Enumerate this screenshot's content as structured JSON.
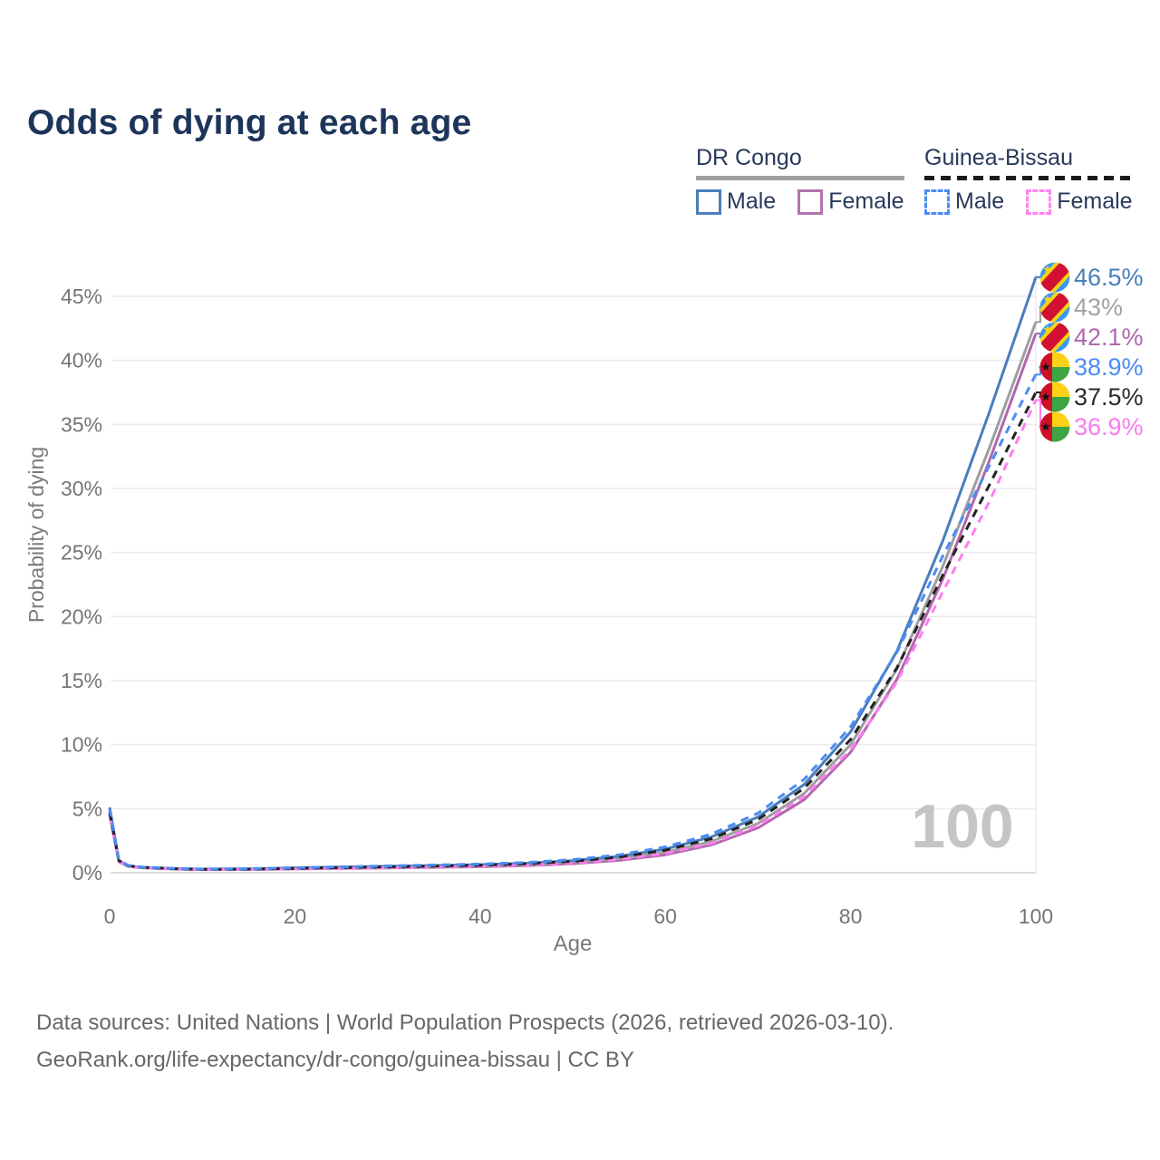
{
  "title": "Odds of dying at each age",
  "legend": {
    "groups": [
      {
        "label": "DR Congo",
        "line_style": "solid",
        "underline_color": "#a0a0a0",
        "items": [
          {
            "label": "Male",
            "color": "#4a7ebb"
          },
          {
            "label": "Female",
            "color": "#b273ae"
          }
        ]
      },
      {
        "label": "Guinea-Bissau",
        "line_style": "dashed",
        "underline_color": "#1b1b1b",
        "items": [
          {
            "label": "Male",
            "color": "#4b8cf5"
          },
          {
            "label": "Female",
            "color": "#ff85f3"
          }
        ]
      }
    ]
  },
  "chart_data": {
    "type": "line",
    "title": "Odds of dying at each age",
    "xlabel": "Age",
    "ylabel": "Probability of dying",
    "xlim": [
      0,
      100
    ],
    "ylim_pct": [
      0,
      47
    ],
    "x_ticks": [
      0,
      20,
      40,
      60,
      80,
      100
    ],
    "y_ticks": [
      "0%",
      "5%",
      "10%",
      "15%",
      "20%",
      "25%",
      "30%",
      "35%",
      "40%",
      "45%"
    ],
    "grid": "horizontal",
    "watermark": "100",
    "ages": [
      0,
      1,
      2,
      3,
      4,
      5,
      7,
      10,
      15,
      20,
      25,
      30,
      35,
      40,
      45,
      50,
      55,
      60,
      65,
      70,
      75,
      80,
      85,
      90,
      95,
      100
    ],
    "series": [
      {
        "id": "drc_female",
        "name": "DR Congo Female",
        "country": "dr-congo",
        "sex": "female",
        "color": "#b167ae",
        "dash": "solid",
        "end_label": "42.1%",
        "label_color": "#b167ae",
        "values_pct": [
          4.55,
          0.85,
          0.5,
          0.41,
          0.36,
          0.34,
          0.28,
          0.24,
          0.25,
          0.29,
          0.33,
          0.37,
          0.42,
          0.47,
          0.56,
          0.71,
          0.96,
          1.4,
          2.18,
          3.5,
          5.7,
          9.4,
          15.1,
          23.0,
          32.2,
          42.1
        ]
      },
      {
        "id": "drc_both",
        "name": "DR Congo Both sexes",
        "country": "dr-congo",
        "sex": "both",
        "color": "#9e9e9e",
        "dash": "solid",
        "end_label": "43%",
        "label_color": "#a3a3a3",
        "values_pct": [
          4.85,
          0.9,
          0.52,
          0.43,
          0.38,
          0.36,
          0.3,
          0.26,
          0.27,
          0.33,
          0.38,
          0.43,
          0.48,
          0.55,
          0.64,
          0.82,
          1.1,
          1.6,
          2.45,
          3.85,
          6.2,
          10.0,
          15.9,
          24.0,
          33.2,
          43.0
        ]
      },
      {
        "id": "drc_male",
        "name": "DR Congo Male",
        "country": "dr-congo",
        "sex": "male",
        "color": "#4a7ebb",
        "dash": "solid",
        "end_label": "46.5%",
        "label_color": "#4a7ebb",
        "values_pct": [
          5.1,
          0.95,
          0.55,
          0.45,
          0.4,
          0.38,
          0.32,
          0.28,
          0.3,
          0.38,
          0.44,
          0.5,
          0.56,
          0.63,
          0.74,
          0.94,
          1.28,
          1.85,
          2.8,
          4.35,
          6.9,
          11.0,
          17.3,
          26.0,
          36.0,
          46.5
        ]
      },
      {
        "id": "gb_female",
        "name": "Guinea-Bissau Female",
        "country": "guinea-bissau",
        "sex": "female",
        "color": "#ff7df2",
        "dash": "dashed",
        "end_label": "36.9%",
        "label_color": "#fb7bf0",
        "values_pct": [
          4.4,
          0.9,
          0.52,
          0.42,
          0.37,
          0.35,
          0.29,
          0.24,
          0.25,
          0.29,
          0.34,
          0.39,
          0.44,
          0.5,
          0.6,
          0.76,
          1.04,
          1.5,
          2.3,
          3.68,
          5.95,
          9.6,
          14.9,
          22.0,
          29.0,
          36.9
        ]
      },
      {
        "id": "gb_both",
        "name": "Guinea-Bissau Both sexes",
        "country": "guinea-bissau",
        "sex": "both",
        "color": "#222222",
        "dash": "dashed",
        "end_label": "37.5%",
        "label_color": "#2b2b2b",
        "values_pct": [
          4.7,
          0.95,
          0.55,
          0.45,
          0.4,
          0.38,
          0.31,
          0.27,
          0.28,
          0.34,
          0.4,
          0.46,
          0.52,
          0.59,
          0.7,
          0.89,
          1.22,
          1.76,
          2.66,
          4.15,
          6.6,
          10.4,
          16.0,
          23.3,
          30.3,
          37.5
        ]
      },
      {
        "id": "gb_male",
        "name": "Guinea-Bissau Male",
        "country": "guinea-bissau",
        "sex": "male",
        "color": "#4b8cf5",
        "dash": "dashed",
        "end_label": "38.9%",
        "label_color": "#4b8cf5",
        "values_pct": [
          5.0,
          1.0,
          0.58,
          0.47,
          0.42,
          0.4,
          0.33,
          0.29,
          0.31,
          0.39,
          0.46,
          0.53,
          0.6,
          0.68,
          0.8,
          1.02,
          1.4,
          2.02,
          3.02,
          4.65,
          7.3,
          11.4,
          17.2,
          24.8,
          31.8,
          38.9
        ]
      }
    ],
    "end_label_order": [
      "drc_male",
      "drc_both",
      "drc_female",
      "gb_male",
      "gb_both",
      "gb_female"
    ],
    "flag_colors": {
      "dr_congo": {
        "blue": "#3b97ef",
        "red": "#d21034",
        "yellow": "#f5d317"
      },
      "guinea_bissau": {
        "red": "#ce1126",
        "yellow": "#fcd116",
        "green": "#3da544",
        "star": "#111111"
      }
    }
  },
  "footer": {
    "line1": "Data sources: United Nations | World Population Prospects (2026, retrieved 2026-03-10).",
    "line2": "GeoRank.org/life-expectancy/dr-congo/guinea-bissau | CC BY"
  }
}
